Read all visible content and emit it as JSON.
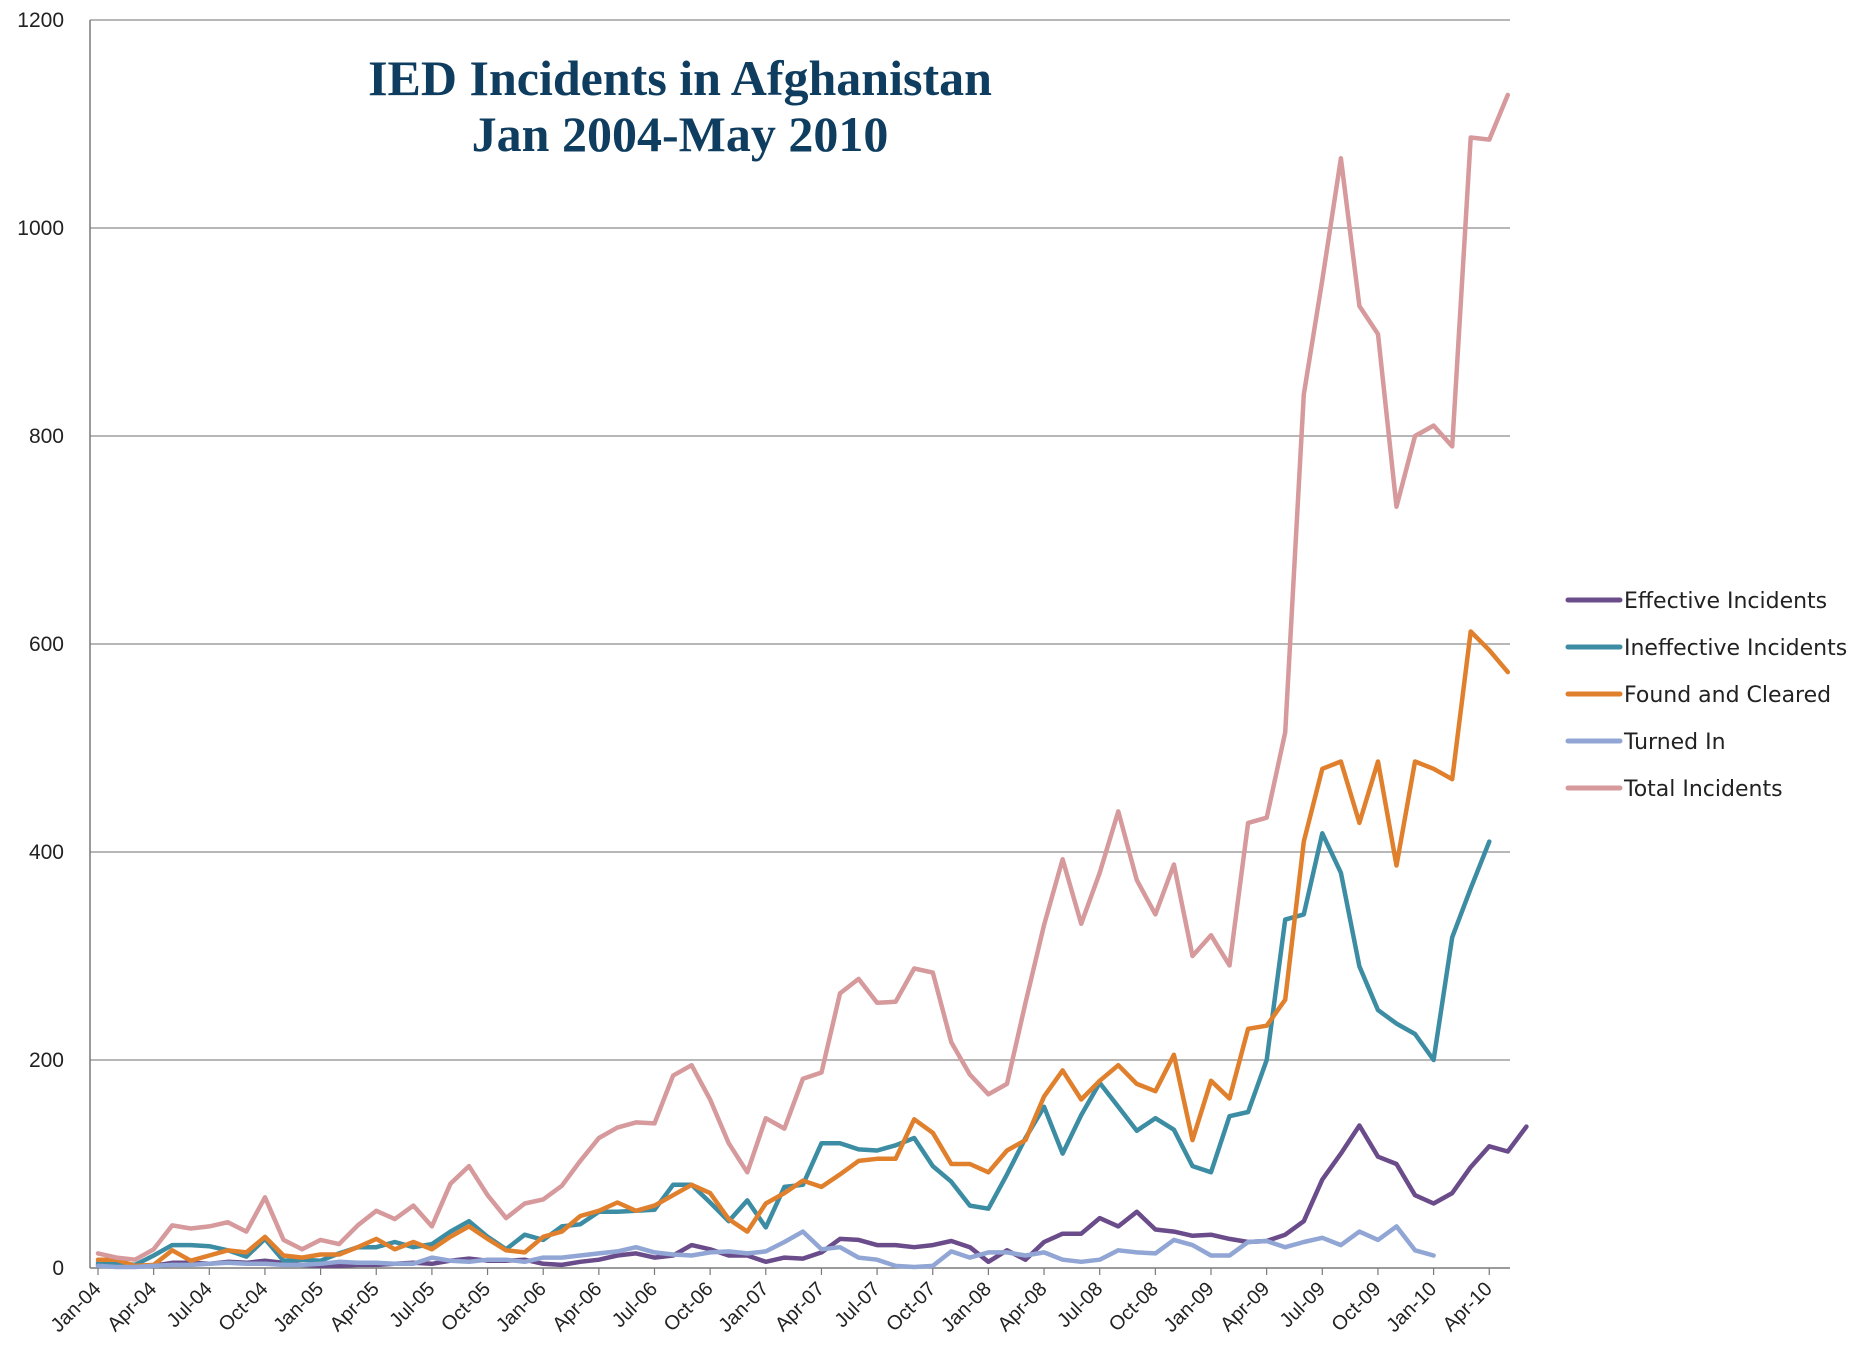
{
  "chart_data": {
    "type": "line",
    "title_lines": [
      "IED Incidents in Afghanistan",
      "Jan 2004-May 2010"
    ],
    "title_color": "#0f3d60",
    "xlabel": "",
    "ylabel": "",
    "ylim": [
      0,
      1200
    ],
    "y_ticks": [
      "0",
      "200",
      "400",
      "600",
      "800",
      "1000",
      "1200"
    ],
    "grid": "horizontal",
    "legend_position": "right",
    "x_tick_labels": [
      "Jan-04",
      "Apr-04",
      "Jul-04",
      "Oct-04",
      "Jan-05",
      "Apr-05",
      "Jul-05",
      "Oct-05",
      "Jan-06",
      "Apr-06",
      "Jul-06",
      "Oct-06",
      "Jan-07",
      "Apr-07",
      "Jul-07",
      "Oct-07",
      "Jan-08",
      "Apr-08",
      "Jul-08",
      "Oct-08",
      "Jan-09",
      "Apr-09",
      "Jul-09",
      "Oct-09",
      "Jan-10",
      "Apr-10"
    ],
    "x_tick_every": 3,
    "series": [
      {
        "name": "Effective Incidents",
        "color": "#6a4c8a",
        "values": [
          3,
          3,
          2,
          2,
          5,
          5,
          4,
          6,
          5,
          7,
          5,
          3,
          2,
          2,
          3,
          3,
          4,
          5,
          4,
          7,
          9,
          7,
          7,
          8,
          4,
          3,
          6,
          8,
          12,
          14,
          10,
          12,
          22,
          18,
          12,
          12,
          6,
          10,
          9,
          15,
          28,
          27,
          22,
          22,
          20,
          22,
          26,
          20,
          6,
          17,
          8,
          25,
          33,
          33,
          48,
          40,
          54,
          37,
          35,
          31,
          32,
          28,
          25,
          26,
          32,
          45,
          85,
          110,
          137,
          107,
          100,
          70,
          62,
          72,
          97,
          117,
          112,
          136
        ]
      },
      {
        "name": "Ineffective Incidents",
        "color": "#3c8da3",
        "values": [
          5,
          5,
          3,
          12,
          22,
          22,
          21,
          17,
          11,
          28,
          7,
          8,
          7,
          14,
          20,
          20,
          25,
          20,
          23,
          35,
          45,
          30,
          18,
          32,
          27,
          40,
          42,
          54,
          54,
          55,
          56,
          80,
          80,
          63,
          45,
          65,
          39,
          78,
          80,
          120,
          120,
          114,
          113,
          118,
          125,
          98,
          83,
          60,
          57,
          90,
          125,
          155,
          110,
          147,
          178,
          155,
          132,
          144,
          133,
          98,
          92,
          146,
          150,
          200,
          335,
          340,
          418,
          380,
          290,
          248,
          235,
          225,
          200,
          318,
          365,
          410
        ]
      },
      {
        "name": "Found and Cleared",
        "color": "#e07f2c",
        "values": [
          8,
          8,
          2,
          3,
          17,
          7,
          12,
          17,
          15,
          30,
          12,
          10,
          13,
          13,
          20,
          28,
          18,
          25,
          18,
          30,
          40,
          28,
          17,
          15,
          30,
          35,
          50,
          55,
          63,
          55,
          60,
          70,
          80,
          72,
          47,
          35,
          62,
          72,
          84,
          78,
          90,
          103,
          105,
          105,
          143,
          130,
          100,
          100,
          92,
          113,
          123,
          165,
          190,
          162,
          180,
          195,
          177,
          170,
          205,
          123,
          180,
          163,
          230,
          233,
          258,
          410,
          480,
          487,
          428,
          487,
          387,
          487,
          480,
          470,
          612,
          594,
          573
        ]
      },
      {
        "name": "Turned In",
        "color": "#91a6d4",
        "values": [
          2,
          1,
          1,
          2,
          3,
          3,
          4,
          5,
          4,
          4,
          3,
          3,
          4,
          6,
          5,
          5,
          4,
          4,
          10,
          7,
          6,
          8,
          8,
          6,
          10,
          10,
          12,
          14,
          16,
          20,
          15,
          13,
          12,
          15,
          16,
          14,
          16,
          25,
          35,
          18,
          20,
          10,
          8,
          2,
          1,
          2,
          16,
          10,
          15,
          15,
          12,
          15,
          8,
          6,
          8,
          17,
          15,
          14,
          27,
          22,
          12,
          12,
          25,
          26,
          20,
          25,
          29,
          22,
          35,
          27,
          40,
          17,
          12
        ]
      },
      {
        "name": "Total Incidents",
        "color": "#d6999c",
        "values": [
          14,
          10,
          8,
          18,
          41,
          38,
          40,
          44,
          35,
          68,
          27,
          18,
          27,
          23,
          41,
          55,
          47,
          60,
          40,
          81,
          98,
          70,
          48,
          62,
          66,
          79,
          103,
          125,
          135,
          140,
          139,
          185,
          195,
          162,
          120,
          92,
          144,
          134,
          182,
          188,
          264,
          278,
          255,
          256,
          288,
          284,
          217,
          186,
          167,
          177,
          255,
          330,
          393,
          331,
          380,
          439,
          373,
          340,
          388,
          300,
          320,
          291,
          428,
          433,
          515,
          840,
          950,
          1067,
          925,
          898,
          732,
          800,
          810,
          790,
          1087,
          1085,
          1128
        ]
      }
    ]
  }
}
